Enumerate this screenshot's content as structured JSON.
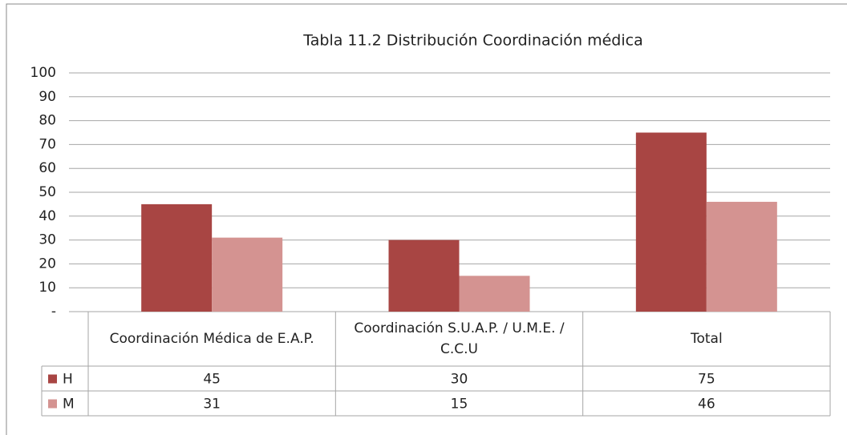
{
  "chart_data": {
    "type": "bar",
    "title": "Tabla 11.2 Distribución Coordinación médica",
    "categories": [
      "Coordinación Médica de E.A.P.",
      "Coordinación S.U.A.P. / U.M.E. / C.C.U",
      "Total"
    ],
    "series": [
      {
        "name": "H",
        "color": "#a84543",
        "values": [
          45,
          30,
          75
        ]
      },
      {
        "name": "M",
        "color": "#d49391",
        "values": [
          31,
          15,
          46
        ]
      }
    ],
    "ylim": [
      0,
      100
    ],
    "yticks": [
      {
        "value": 0,
        "label": "-"
      },
      10,
      20,
      30,
      40,
      50,
      60,
      70,
      80,
      90,
      100
    ],
    "grid": true
  }
}
